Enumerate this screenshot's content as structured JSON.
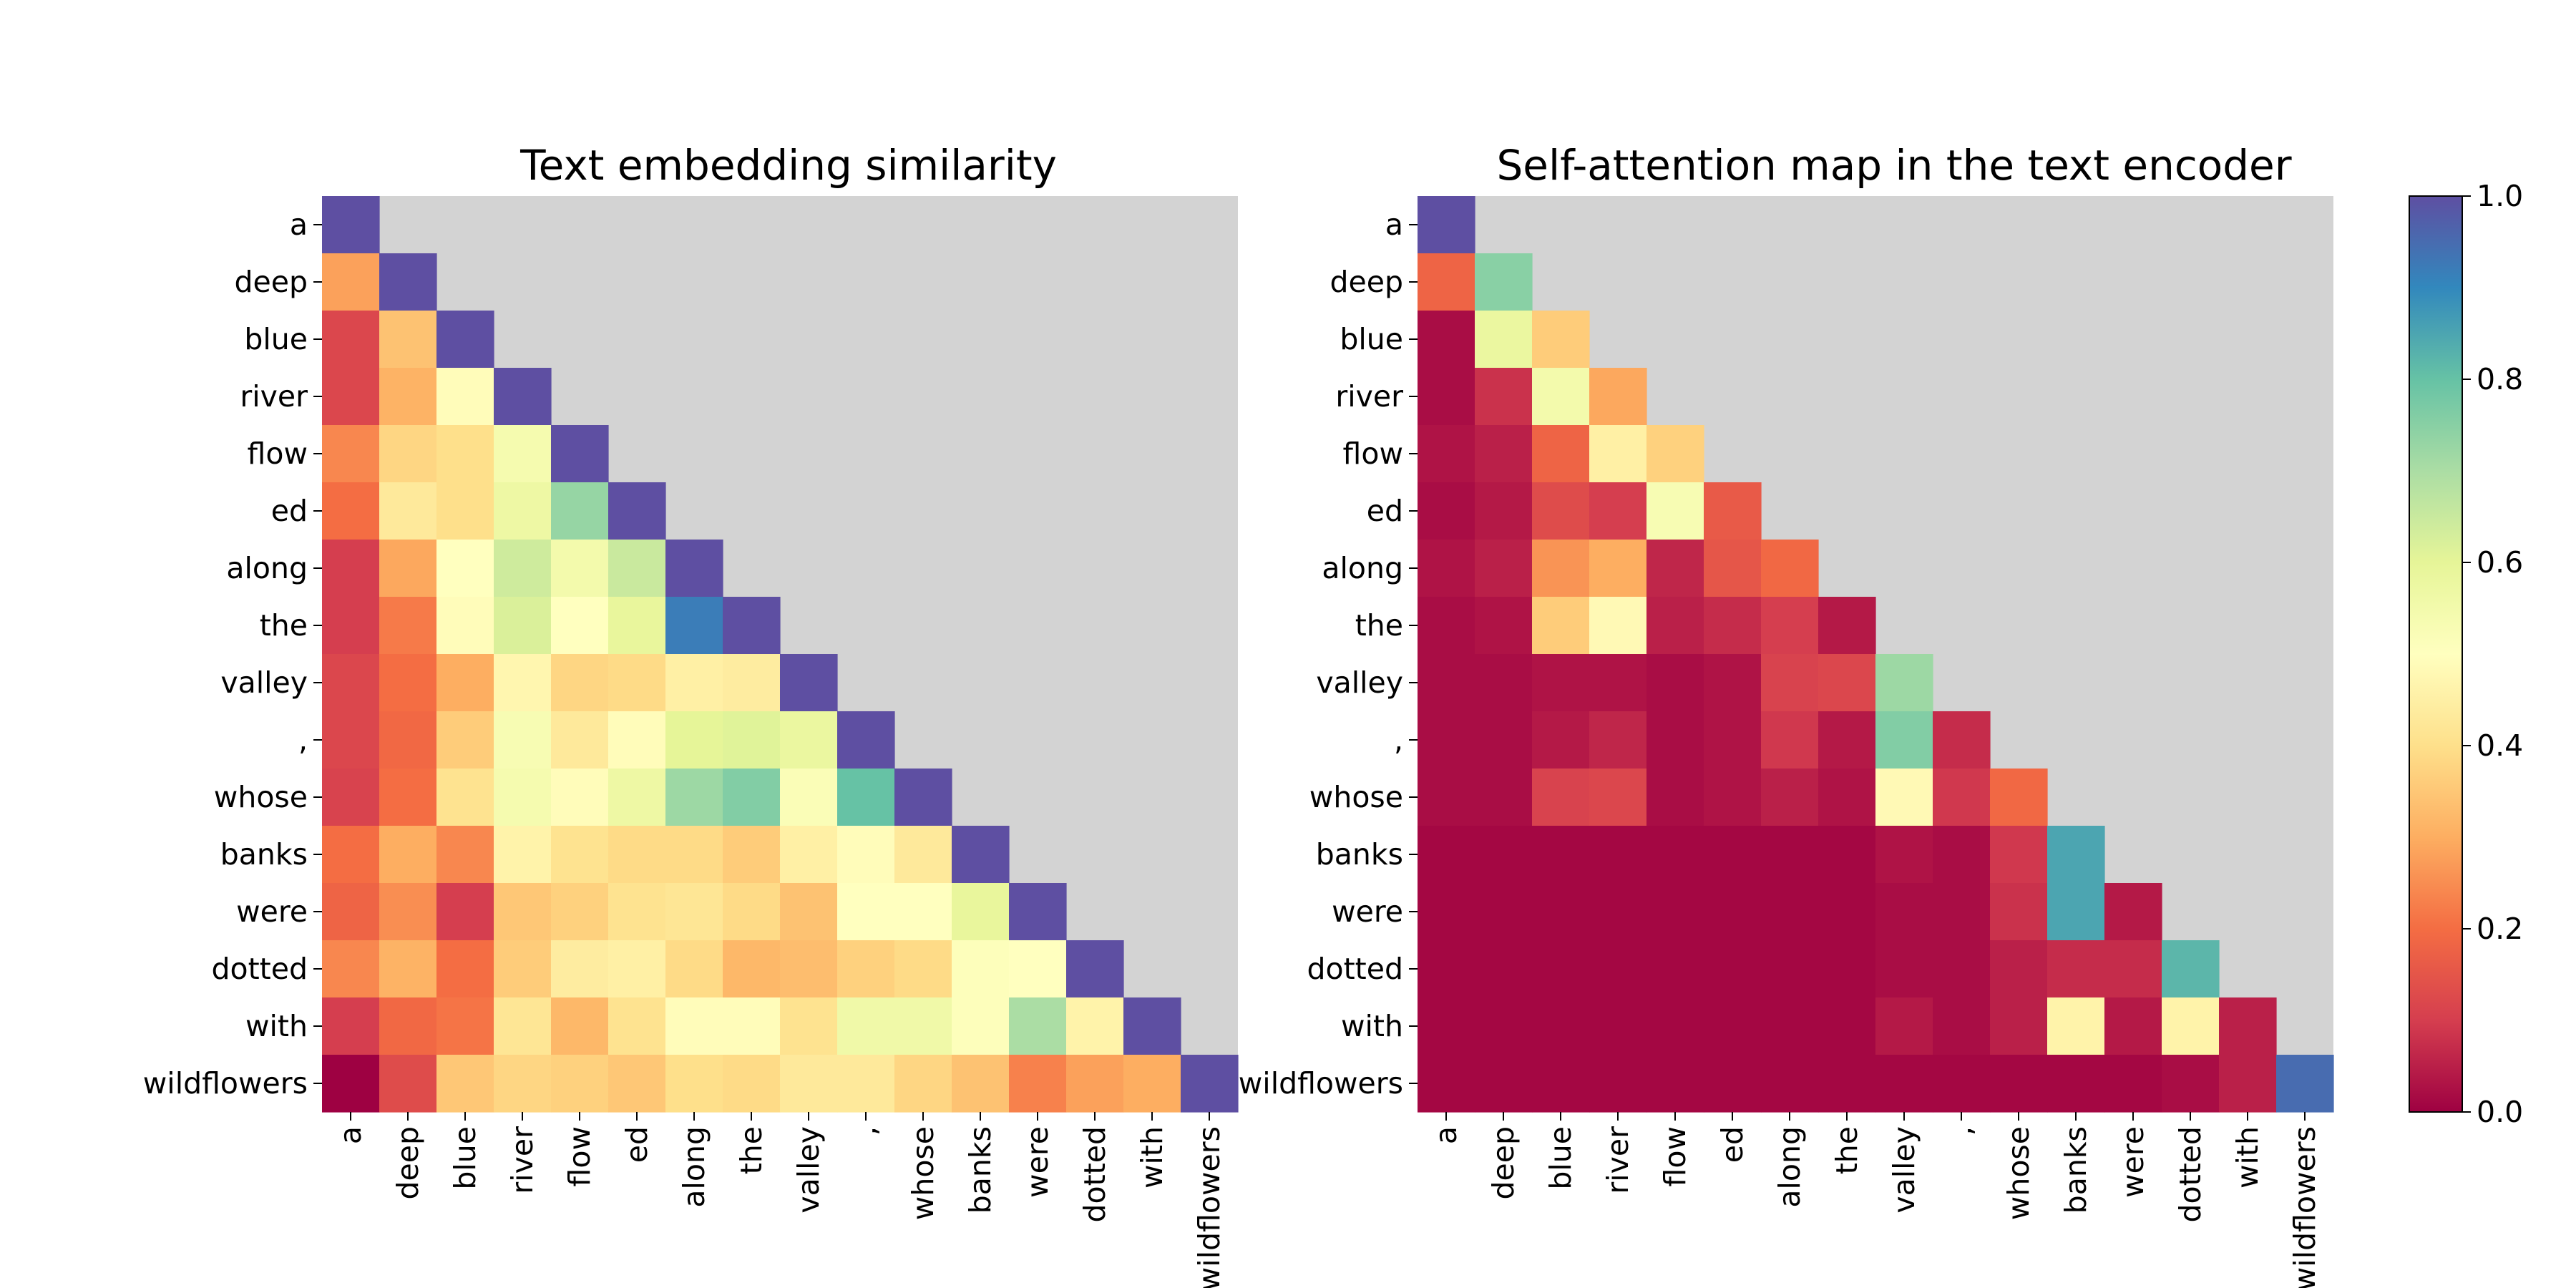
{
  "tokens": [
    "a",
    "deep",
    "blue",
    "river",
    "flow",
    "ed",
    "along",
    "the",
    "valley",
    ",",
    "whose",
    "banks",
    "were",
    "dotted",
    "with",
    "wildflowers"
  ],
  "colors": {
    "masked_cell": "#d3d3d3",
    "colormap": [
      "#9e0142",
      "#d53e4f",
      "#f46d43",
      "#fdae61",
      "#fee08b",
      "#ffffbf",
      "#e6f598",
      "#abdda4",
      "#66c2a5",
      "#3288bd",
      "#5e4fa2"
    ]
  },
  "chart_data": [
    {
      "type": "heatmap",
      "title": "Text embedding similarity",
      "rows": [
        "a",
        "deep",
        "blue",
        "river",
        "flow",
        "ed",
        "along",
        "the",
        "valley",
        ",",
        "whose",
        "banks",
        "were",
        "dotted",
        "with",
        "wildflowers"
      ],
      "cols": [
        "a",
        "deep",
        "blue",
        "river",
        "flow",
        "ed",
        "along",
        "the",
        "valley",
        ",",
        "whose",
        "banks",
        "were",
        "dotted",
        "with",
        "wildflowers"
      ],
      "mask": "upper-triangle",
      "vmin": 0.0,
      "vmax": 1.0,
      "values": [
        [
          1.0
        ],
        [
          0.28,
          1.0
        ],
        [
          0.12,
          0.34,
          1.0
        ],
        [
          0.12,
          0.31,
          0.49,
          1.0
        ],
        [
          0.24,
          0.38,
          0.4,
          0.54,
          1.0
        ],
        [
          0.2,
          0.43,
          0.4,
          0.57,
          0.73,
          1.0
        ],
        [
          0.1,
          0.29,
          0.5,
          0.64,
          0.55,
          0.65,
          1.0
        ],
        [
          0.1,
          0.22,
          0.49,
          0.62,
          0.5,
          0.59,
          0.92,
          1.0
        ],
        [
          0.12,
          0.2,
          0.3,
          0.47,
          0.38,
          0.39,
          0.45,
          0.44,
          1.0
        ],
        [
          0.12,
          0.19,
          0.36,
          0.53,
          0.43,
          0.49,
          0.6,
          0.61,
          0.58,
          1.0
        ],
        [
          0.11,
          0.2,
          0.41,
          0.54,
          0.49,
          0.57,
          0.72,
          0.76,
          0.52,
          0.8,
          1.0
        ],
        [
          0.2,
          0.3,
          0.24,
          0.46,
          0.41,
          0.39,
          0.39,
          0.36,
          0.45,
          0.49,
          0.43,
          1.0
        ],
        [
          0.18,
          0.25,
          0.1,
          0.35,
          0.37,
          0.41,
          0.42,
          0.39,
          0.34,
          0.5,
          0.5,
          0.59,
          1.0
        ],
        [
          0.24,
          0.31,
          0.2,
          0.36,
          0.44,
          0.45,
          0.39,
          0.32,
          0.33,
          0.37,
          0.39,
          0.51,
          0.5,
          1.0
        ],
        [
          0.1,
          0.19,
          0.21,
          0.42,
          0.32,
          0.41,
          0.49,
          0.49,
          0.41,
          0.56,
          0.56,
          0.51,
          0.7,
          0.46,
          1.0
        ],
        [
          0.0,
          0.13,
          0.35,
          0.38,
          0.37,
          0.35,
          0.4,
          0.39,
          0.43,
          0.43,
          0.38,
          0.34,
          0.23,
          0.28,
          0.3,
          1.0
        ]
      ]
    },
    {
      "type": "heatmap",
      "title": "Self-attention map in the text encoder",
      "rows": [
        "a",
        "deep",
        "blue",
        "river",
        "flow",
        "ed",
        "along",
        "the",
        "valley",
        ",",
        "whose",
        "banks",
        "were",
        "dotted",
        "with",
        "wildflowers"
      ],
      "cols": [
        "a",
        "deep",
        "blue",
        "river",
        "flow",
        "ed",
        "along",
        "the",
        "valley",
        ",",
        "whose",
        "banks",
        "were",
        "dotted",
        "with",
        "wildflowers"
      ],
      "mask": "upper-triangle",
      "vmin": 0.0,
      "vmax": 1.0,
      "values": [
        [
          1.0
        ],
        [
          0.18,
          0.75
        ],
        [
          0.02,
          0.58,
          0.36
        ],
        [
          0.02,
          0.08,
          0.55,
          0.29
        ],
        [
          0.03,
          0.05,
          0.18,
          0.45,
          0.37
        ],
        [
          0.02,
          0.04,
          0.13,
          0.1,
          0.53,
          0.16
        ],
        [
          0.03,
          0.05,
          0.26,
          0.3,
          0.06,
          0.15,
          0.19
        ],
        [
          0.02,
          0.03,
          0.36,
          0.48,
          0.05,
          0.07,
          0.1,
          0.04
        ],
        [
          0.02,
          0.02,
          0.03,
          0.03,
          0.02,
          0.03,
          0.11,
          0.12,
          0.72
        ],
        [
          0.02,
          0.02,
          0.04,
          0.06,
          0.02,
          0.03,
          0.09,
          0.04,
          0.76,
          0.07
        ],
        [
          0.02,
          0.02,
          0.11,
          0.12,
          0.02,
          0.03,
          0.05,
          0.03,
          0.48,
          0.09,
          0.19
        ],
        [
          0.01,
          0.01,
          0.01,
          0.01,
          0.01,
          0.01,
          0.01,
          0.01,
          0.03,
          0.02,
          0.09,
          0.85
        ],
        [
          0.01,
          0.01,
          0.01,
          0.01,
          0.01,
          0.01,
          0.01,
          0.01,
          0.02,
          0.02,
          0.08,
          0.85,
          0.04
        ],
        [
          0.01,
          0.01,
          0.01,
          0.01,
          0.01,
          0.01,
          0.01,
          0.01,
          0.02,
          0.02,
          0.05,
          0.07,
          0.07,
          0.82
        ],
        [
          0.01,
          0.01,
          0.01,
          0.01,
          0.01,
          0.01,
          0.01,
          0.01,
          0.04,
          0.02,
          0.05,
          0.46,
          0.04,
          0.46,
          0.05
        ],
        [
          0.01,
          0.01,
          0.01,
          0.01,
          0.01,
          0.01,
          0.01,
          0.01,
          0.01,
          0.01,
          0.01,
          0.01,
          0.01,
          0.02,
          0.05,
          0.95
        ]
      ]
    }
  ],
  "colorbar": {
    "ticks": [
      "0.0",
      "0.2",
      "0.4",
      "0.6",
      "0.8",
      "1.0"
    ],
    "tick_values": [
      0.0,
      0.2,
      0.4,
      0.6,
      0.8,
      1.0
    ],
    "vmin": 0.0,
    "vmax": 1.0
  }
}
